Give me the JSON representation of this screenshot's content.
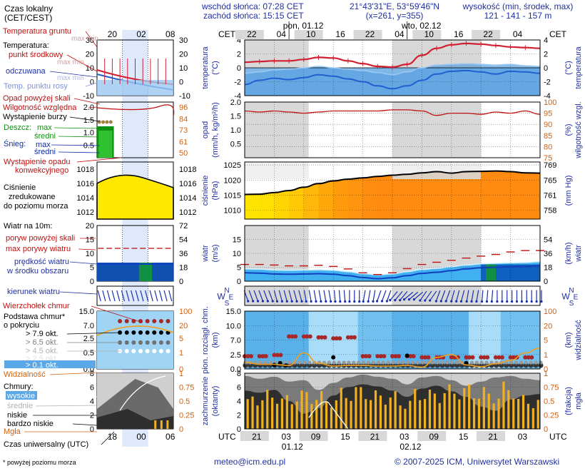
{
  "header": {
    "sunrise": "wschód słońca: 07:28 CET",
    "sunset": "zachód słońca: 15:15 CET",
    "coords": "21°43'31\"E, 53°59'46\"N",
    "grid": "(x=261,  y=355)",
    "height_label": "wysokość (min, środek, max)",
    "height_values": "121 - 141 - 157 m"
  },
  "footer": {
    "email": "meteo@icm.edu.pl",
    "copyright": "© 2007-2025 ICM, Uniwersytet Warszawski",
    "note": "* powyżej poziomu morza"
  },
  "colors": {
    "frame": "#000000",
    "label_blue": "#1f2fa0",
    "label_red": "#c01010",
    "axis_orange": "#d06010",
    "temp_red": "#d02030",
    "dew_blue": "#2060d0",
    "cold_blue": "#7fb8e8",
    "night_grey": "#d8d8d8",
    "pressure_yellow": "#ffe800",
    "pressure_orange": "#f08c10",
    "wind_mean": "#1040c0",
    "wind_gust": "#c01010",
    "visibility": "#f0a020",
    "fog": "#f0b020",
    "cloud_high_line": "#ffffff"
  },
  "legend": {
    "local_time": "Czas lokalny",
    "local_time_zone": "(CET/CEST)",
    "ground_temp": "Temperatura gruntu",
    "ground_minmax": "max min",
    "temperature": "Temperatura:",
    "midpoint": "punkt środkowy",
    "max_min": "max min",
    "felt": "odczuwana",
    "dew_point": "Temp. punktu rosy",
    "precip_above": "Opad powyżej skali",
    "humidity": "Wilgotność względna",
    "storm": "Wystąpienie burzy",
    "rain": "Deszcz:",
    "rain_max": "max",
    "rain_mean": "średni",
    "snow": "Śnieg:",
    "snow_max": "max",
    "snow_mean": "średni",
    "convective": "Wystąpienie opadu",
    "convective2": "konwekcyjnego",
    "pressure": "Ciśnienie",
    "pressure2": "zredukowane",
    "pressure3": "do poziomu morza",
    "wind_10m": "Wiatr na 10m:",
    "gust_above": "poryw powyżej skali",
    "gust_max": "max porywy wiatru",
    "wind_mean": "prędkość wiatru",
    "wind_mean2": "w środku obszaru",
    "wind_dir": "kierunek wiatru",
    "cloud_top": "Wierzchołek chmur",
    "cloud_base": "Podstawa chmur*",
    "cloud_base2": "o pokryciu",
    "okt_79": "> 7.9 okt.",
    "okt_65": "> 6.5 okt.",
    "okt_45": "> 4.5 okt.",
    "okt_25": "> 2.5 okt.",
    "okt_01": "> 0.1 okt.",
    "visibility": "Widzialność",
    "clouds": "Chmury:",
    "cloud_high": "wysokie",
    "cloud_mid": "średnie",
    "cloud_low": "niskie",
    "cloud_vlow": "bardzo niskie",
    "fog": "Mgła",
    "utc_time": "Czas uniwersalny (UTC)"
  },
  "axes": {
    "cet": "CET",
    "utc": "UTC",
    "day1": "pon, 01.12",
    "day2": "wto, 02.12",
    "day1_utc": "01.12",
    "day2_utc": "02.12",
    "cet_ticks": [
      "22",
      "04",
      "10",
      "16",
      "22",
      "04",
      "10",
      "16",
      "22",
      "04"
    ],
    "utc_ticks": [
      "21",
      "03",
      "09",
      "15",
      "21",
      "03",
      "09",
      "15",
      "21",
      "03"
    ],
    "legend_cet_ticks": [
      "20",
      "02",
      "08"
    ],
    "legend_utc_ticks": [
      "18",
      "00",
      "06"
    ],
    "temp_label": "temperatura",
    "temp_unit": "(°C)",
    "precip_label": "opad",
    "precip_unit": "(mm/h, kg/m²/h)",
    "humidity_label": "wilgotność wzgl.",
    "humidity_unit": "(%)",
    "pressure_label": "ciśnienie",
    "pressure_unit": "(hPa)",
    "pressure_unit2": "(mm Hg)",
    "wind_label": "wiatr",
    "wind_unit": "(m/s)",
    "wind_unit2": "(km/h)",
    "cloud_label": "pion. rozciągł. chm.",
    "cloud_unit": "(km)",
    "vis_label": "widzialność",
    "vis_unit": "(km)",
    "cover_label": "zachmurzenie",
    "cover_unit": "(oktanty)",
    "fog_label": "mgła",
    "fog_unit": "(frakcja)",
    "compass_n": "N",
    "compass_w": "W",
    "compass_e": "E",
    "compass_s": "S"
  },
  "chart_data": {
    "type": "line",
    "x_hours": [
      0,
      3,
      6,
      9,
      12,
      15,
      18,
      21,
      24,
      27,
      30,
      33,
      36,
      39,
      42,
      45,
      48,
      51,
      54,
      57,
      60
    ],
    "temperature": {
      "ylim": [
        -4,
        4
      ],
      "ticks": [
        4,
        2,
        0,
        -2,
        -4
      ],
      "midpoint": [
        0.8,
        0.9,
        1.0,
        1.0,
        1.2,
        1.5,
        1.4,
        1.0,
        0.6,
        0.2,
        0.1,
        0.5,
        1.8,
        2.8,
        3.3,
        3.5,
        3.4,
        3.2,
        3.0,
        2.9,
        2.8
      ],
      "felt": [
        -2.4,
        -1.8,
        -1.5,
        -1.7,
        -1.4,
        -1.0,
        -1.2,
        -1.6,
        -2.0,
        -2.6,
        -3.0,
        -2.6,
        -1.8,
        -0.9,
        -0.5,
        -0.4,
        -0.6,
        -0.9,
        -0.5,
        -0.6,
        -0.8
      ],
      "dew": [
        -0.8,
        -0.6,
        -0.3,
        -0.2,
        0.0,
        0.2,
        0.0,
        -0.2,
        -0.4,
        -0.7,
        -1.0,
        -0.6,
        0.0,
        0.4,
        0.5,
        0.6,
        0.5,
        0.4,
        0.5,
        0.3,
        0.2
      ]
    },
    "humidity": {
      "ylim": [
        75,
        100
      ],
      "ticks": [
        100,
        95,
        90,
        85,
        80,
        75
      ],
      "values": [
        96,
        95.5,
        96,
        95.5,
        95,
        95.5,
        96,
        96,
        96,
        96,
        96.5,
        96.5,
        96,
        94,
        95,
        95,
        94.5,
        95.5,
        95,
        96,
        94.5
      ]
    },
    "precipitation": {
      "ylim": [
        0,
        2.0
      ],
      "ticks": [
        2.0,
        1.5,
        1.0,
        0.5
      ]
    },
    "pressure": {
      "ylim": [
        1007,
        1026
      ],
      "ticks": [
        1025,
        1020,
        1015,
        1010
      ],
      "ticks_mmhg": [
        769,
        765,
        761,
        758
      ],
      "values": [
        1015.2,
        1015.3,
        1015.8,
        1016.5,
        1017.6,
        1018.8,
        1019.7,
        1020.3,
        1020.7,
        1021.2,
        1021.6,
        1021.9,
        1022.4,
        1022.8,
        1022.3,
        1022.8,
        1022.9,
        1023.0,
        1022.8,
        1022.4,
        1022.3
      ]
    },
    "wind": {
      "ylim": [
        0,
        20
      ],
      "ticks": [
        15,
        10,
        5
      ],
      "ticks_kmh": [
        54,
        36,
        18
      ],
      "mean": [
        3.0,
        2.9,
        2.6,
        2.5,
        2.6,
        2.7,
        2.5,
        2.0,
        1.3,
        0.9,
        1.2,
        2.0,
        2.8,
        3.2,
        3.8,
        4.4,
        4.8,
        5.0,
        5.2,
        5.3,
        5.6
      ],
      "gust": [
        6.0,
        6.0,
        5.8,
        5.5,
        5.5,
        5.7,
        5.3,
        4.4,
        3.0,
        2.4,
        3.0,
        4.5,
        6.0,
        6.8,
        7.5,
        8.3,
        9.0,
        9.6,
        10.5,
        11.0,
        11.0
      ],
      "direction_deg": [
        160,
        160,
        165,
        165,
        170,
        170,
        175,
        180,
        190,
        200,
        220,
        230,
        215,
        200,
        195,
        190,
        185,
        180,
        180,
        180,
        180
      ]
    },
    "clouds": {
      "ylim_km": [
        0,
        15
      ],
      "ticks_km": [
        15.0,
        10.0,
        7.0,
        2.5,
        0.0
      ],
      "vis_ticks_km": [
        100,
        20,
        5,
        1,
        0
      ],
      "top_km": [
        2.2,
        2.2,
        2.4,
        7.6,
        7.6,
        7.4,
        7.2,
        7.4,
        2.2,
        2.2,
        2.2,
        2.2,
        2.0,
        2.0,
        2.0,
        2.0,
        2.0,
        2.0,
        2.0,
        2.0,
        2.0
      ],
      "visibility_km": [
        1.2,
        0.8,
        0.8,
        0.6,
        3.0,
        1.0,
        0.5,
        0.6,
        0.6,
        0.5,
        0.5,
        0.6,
        0.3,
        2.0,
        2.5,
        0.7,
        0.4,
        0.9,
        1.5,
        3.0,
        4.5
      ]
    },
    "cloud_cover": {
      "ylim_octants": [
        0,
        8
      ],
      "ticks_octants": [
        8,
        6,
        4,
        2,
        0
      ],
      "fog_ticks": [
        1,
        0.75,
        0.5,
        0.25,
        0
      ],
      "fog_fraction": [
        0.55,
        0.65,
        0.7,
        0.62,
        0.72,
        0.68,
        0.6,
        0.75,
        0.8,
        0.7,
        0.68,
        0.55,
        0.75,
        0.72,
        0.8,
        0.82,
        0.78,
        0.7,
        0.85,
        0.62,
        0.55
      ]
    }
  }
}
